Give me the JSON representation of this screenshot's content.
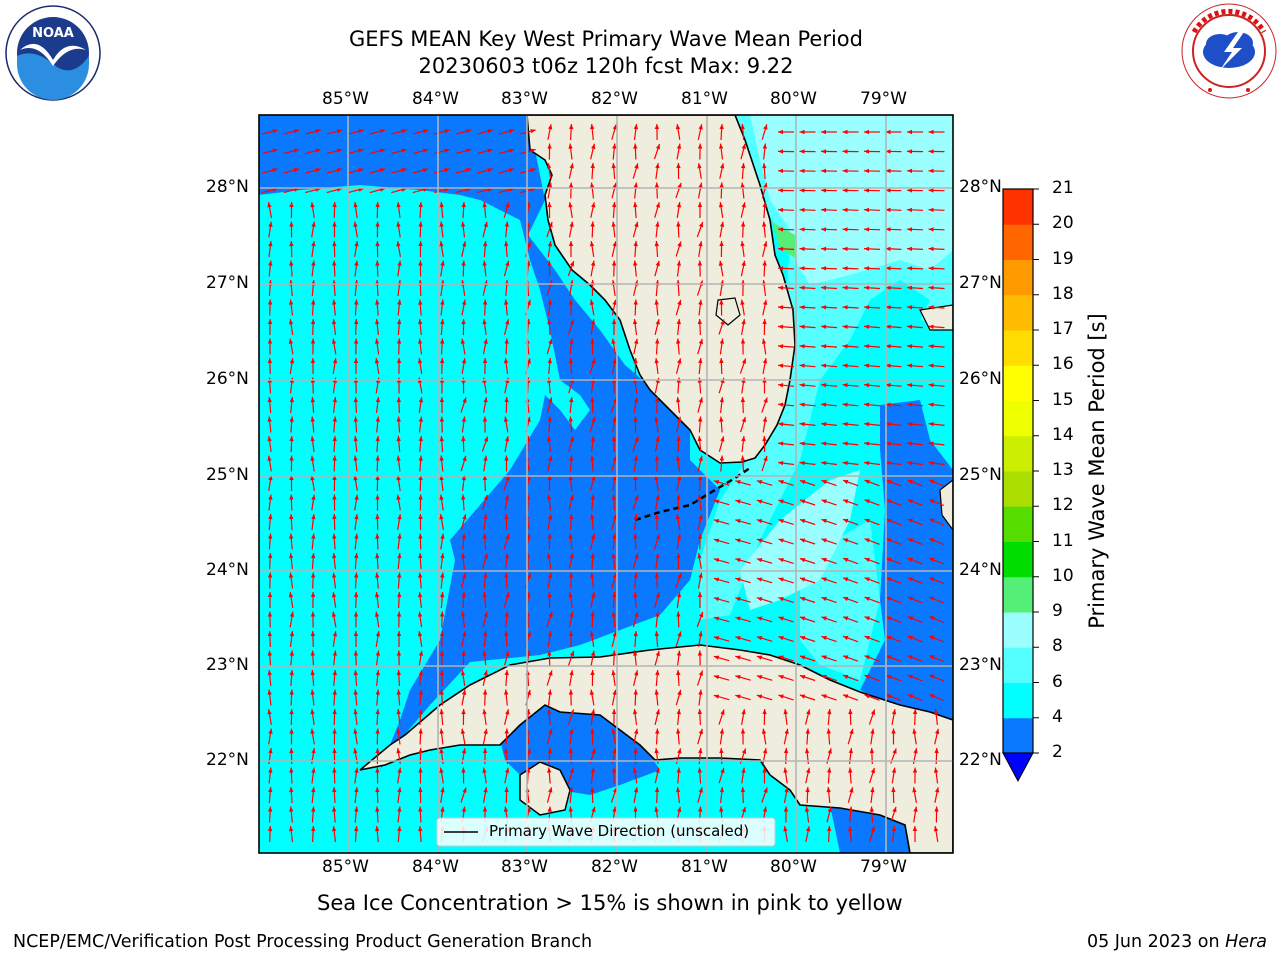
{
  "title": {
    "line1": "GEFS MEAN Key West Primary Wave Mean Period",
    "line2": "20230603 t06z 120h fcst   Max: 9.22"
  },
  "logos": {
    "noaa_text": "NOAA",
    "noaa_ring": "NATIONAL OCEANIC AND ATMOSPHERIC ADMINISTRATION · U.S. DEPARTMENT OF COMMERCE",
    "nws_ring": "NATIONAL WEATHER SERVICE"
  },
  "map": {
    "lon_labels": [
      "85°W",
      "84°W",
      "83°W",
      "82°W",
      "81°W",
      "80°W",
      "79°W"
    ],
    "lat_labels": [
      "28°N",
      "27°N",
      "26°N",
      "25°N",
      "24°N",
      "23°N",
      "22°N"
    ],
    "legend_label": "Primary Wave Direction (unscaled)",
    "colors": {
      "land": "#efeddd",
      "period_2_4": "#0a78ff",
      "period_4_6": "#00ffff",
      "period_6_8": "#55ffff",
      "period_8_9": "#9bffff",
      "period_9_10": "#55ee77",
      "arrow": "#ff0000",
      "grid": "#b4b4b4"
    }
  },
  "colorbar": {
    "label": "Primary Wave Mean Period [s]",
    "ticks": [
      "2",
      "4",
      "6",
      "8",
      "9",
      "10",
      "11",
      "12",
      "13",
      "14",
      "15",
      "16",
      "17",
      "18",
      "19",
      "20",
      "21"
    ],
    "colors": [
      "#0a78ff",
      "#00ffff",
      "#55ffff",
      "#9bffff",
      "#55ee77",
      "#00dd00",
      "#55dd00",
      "#aadd00",
      "#ccee00",
      "#eeff00",
      "#ffff00",
      "#ffdd00",
      "#ffbb00",
      "#ff9900",
      "#ff6600",
      "#ff3300"
    ],
    "under_color": "#0000ff",
    "over_color": "#ff0000"
  },
  "note": "Sea Ice Concentration > 15% is shown in pink to yellow",
  "footer": {
    "left": "NCEP/EMC/Verification Post Processing Product Generation Branch",
    "right_date": "05 Jun 2023 on ",
    "right_host": "Hera"
  }
}
